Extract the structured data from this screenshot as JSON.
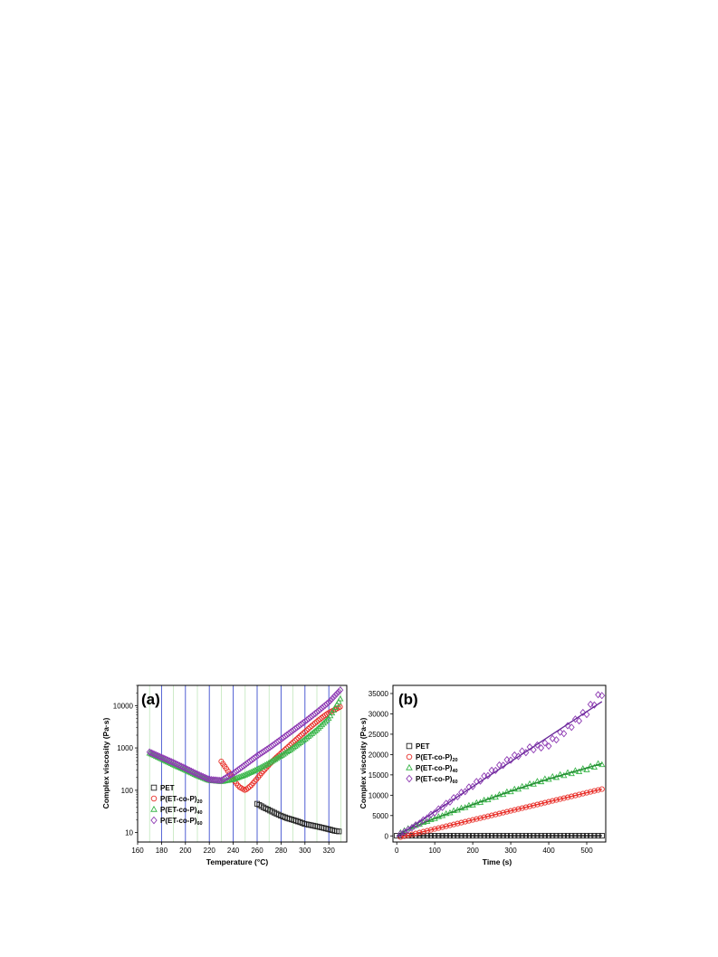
{
  "chart_data": [
    {
      "panel_label": "(a)",
      "type": "scatter",
      "xlabel": "Temperature (°C)",
      "ylabel": "Complex viscosity (Pa·s)",
      "xlim": [
        160,
        335
      ],
      "ylim": [
        6,
        30000
      ],
      "y_scale": "log",
      "x_ticks": [
        160,
        180,
        200,
        220,
        240,
        260,
        280,
        300,
        320
      ],
      "y_ticks": [
        10,
        100,
        1000,
        10000
      ],
      "grid": "vertical reference lines at each 10 °C step from 170 to 330 (blue at 180, 200, 220, 240, 260, 280, 300, 320)",
      "legend_position": "bottom-left",
      "series": [
        {
          "name": "PET",
          "sub": "",
          "marker": "square",
          "color": "#222222",
          "x": [
            260,
            265,
            270,
            275,
            280,
            285,
            290,
            295,
            300,
            305,
            310,
            315,
            320,
            325,
            330
          ],
          "y": [
            48,
            40,
            34,
            29,
            25,
            22,
            20,
            18,
            16,
            15,
            14,
            13,
            12,
            11,
            10.5
          ]
        },
        {
          "name": "P(ET-co-P)",
          "sub": "20",
          "marker": "circle",
          "color": "#e8302a",
          "x": [
            230,
            235,
            240,
            245,
            250,
            255,
            260,
            265,
            270,
            275,
            280,
            285,
            290,
            295,
            300,
            305,
            310,
            315,
            320,
            325,
            330
          ],
          "y": [
            480,
            300,
            180,
            120,
            100,
            130,
            190,
            280,
            400,
            560,
            750,
            1000,
            1350,
            1800,
            2400,
            3200,
            4200,
            5400,
            6800,
            8000,
            9500
          ]
        },
        {
          "name": "P(ET-co-P)",
          "sub": "40",
          "marker": "triangle",
          "color": "#3ab54a",
          "x": [
            170,
            180,
            190,
            200,
            210,
            220,
            230,
            240,
            250,
            260,
            270,
            280,
            290,
            300,
            310,
            320,
            330
          ],
          "y": [
            750,
            550,
            400,
            300,
            220,
            170,
            160,
            180,
            230,
            310,
            440,
            650,
            1000,
            1600,
            2700,
            5000,
            15000
          ]
        },
        {
          "name": "P(ET-co-P)",
          "sub": "60",
          "marker": "diamond",
          "color": "#8e3bb3",
          "x": [
            170,
            180,
            190,
            200,
            210,
            220,
            230,
            240,
            250,
            260,
            270,
            280,
            290,
            300,
            310,
            320,
            330
          ],
          "y": [
            800,
            600,
            450,
            330,
            240,
            180,
            170,
            250,
            400,
            650,
            1000,
            1600,
            2600,
            4200,
            7000,
            12000,
            24000
          ]
        }
      ]
    },
    {
      "panel_label": "(b)",
      "type": "scatter",
      "xlabel": "Time (s)",
      "ylabel": "Complex viscosity (Pa·s)",
      "xlim": [
        -10,
        550
      ],
      "ylim": [
        -1500,
        37000
      ],
      "x_ticks": [
        0,
        100,
        200,
        300,
        400,
        500
      ],
      "y_ticks": [
        0,
        5000,
        10000,
        15000,
        20000,
        25000,
        30000,
        35000
      ],
      "legend_position": "left",
      "series": [
        {
          "name": "PET",
          "sub": "",
          "marker": "square",
          "color": "#222222",
          "line_color": "#111111",
          "x": [
            0,
            540
          ],
          "y": [
            50,
            50
          ],
          "fit": [
            [
              0,
              50
            ],
            [
              540,
              50
            ]
          ]
        },
        {
          "name": "P(ET-co-P)",
          "sub": "20",
          "marker": "circle",
          "color": "#e8302a",
          "line_color": "#e8302a",
          "x": [
            10,
            540
          ],
          "y": [
            -300,
            11500
          ],
          "fit": [
            [
              10,
              -300
            ],
            [
              540,
              11500
            ]
          ]
        },
        {
          "name": "P(ET-co-P)",
          "sub": "40",
          "marker": "triangle",
          "color": "#3ab54a",
          "line_color": "#1f8a2e",
          "x": [
            10,
            30,
            60,
            100,
            150,
            200,
            250,
            300,
            350,
            400,
            450,
            500,
            540
          ],
          "y": [
            800,
            1800,
            2900,
            4300,
            6100,
            7700,
            9300,
            11000,
            12600,
            14100,
            15300,
            16500,
            17800
          ],
          "fit": [
            [
              10,
              800
            ],
            [
              100,
              4300
            ],
            [
              200,
              7700
            ],
            [
              300,
              11000
            ],
            [
              400,
              14000
            ],
            [
              540,
              17800
            ]
          ]
        },
        {
          "name": "P(ET-co-P)",
          "sub": "60",
          "marker": "diamond",
          "color": "#8e3bb3",
          "line_color": "#6a2a9a",
          "x": [
            10,
            30,
            60,
            100,
            150,
            200,
            250,
            300,
            350,
            400,
            450,
            500,
            540
          ],
          "y": [
            500,
            1500,
            3200,
            5800,
            9200,
            12400,
            15800,
            19000,
            21400,
            22600,
            26500,
            30500,
            35200
          ],
          "fit": [
            [
              0,
              -200
            ],
            [
              540,
              33000
            ]
          ]
        }
      ]
    }
  ]
}
